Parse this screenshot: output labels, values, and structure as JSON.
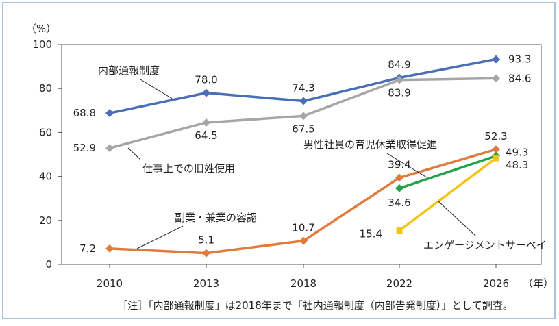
{
  "chart_data": {
    "type": "line",
    "y_unit": "（%）",
    "x_unit": "（年）",
    "categories": [
      "2010",
      "2013",
      "2018",
      "2022",
      "2026"
    ],
    "ylim": [
      0,
      100
    ],
    "yticks": [
      0,
      20,
      40,
      60,
      80,
      100
    ],
    "grid": false,
    "series": [
      {
        "name": "内部通報制度",
        "color": "#4a6fb8",
        "marker": "diamond",
        "values": [
          68.8,
          78.0,
          74.3,
          84.9,
          93.3
        ],
        "labels": [
          "68.8",
          "78.0",
          "74.3",
          "84.9",
          "93.3"
        ]
      },
      {
        "name": "仕事上での旧姓使用",
        "color": "#a6a6a6",
        "marker": "diamond",
        "values": [
          52.9,
          64.5,
          67.5,
          83.9,
          84.6
        ],
        "labels": [
          "52.9",
          "64.5",
          "67.5",
          "83.9",
          "84.6"
        ]
      },
      {
        "name": "副業・兼業の容認",
        "color": "#e07b3c",
        "marker": "diamond",
        "values": [
          7.2,
          5.1,
          10.7,
          39.4,
          52.3
        ],
        "labels": [
          "7.2",
          "5.1",
          "10.7",
          "39.4",
          "52.3"
        ]
      },
      {
        "name": "男性社員の育児休業取得促進",
        "color": "#23a24a",
        "marker": "diamond",
        "values": [
          null,
          null,
          null,
          34.6,
          49.3
        ],
        "labels": [
          "",
          "",
          "",
          "34.6",
          "49.3"
        ]
      },
      {
        "name": "エンゲージメントサーベイ",
        "color": "#f2c418",
        "marker": "square",
        "values": [
          null,
          null,
          null,
          15.4,
          48.3
        ],
        "labels": [
          "",
          "",
          "",
          "15.4",
          "48.3"
        ]
      }
    ],
    "note": "［注］「内部通報制度」は2018年まで「社内通報制度（内部告発制度）」として調査。"
  }
}
